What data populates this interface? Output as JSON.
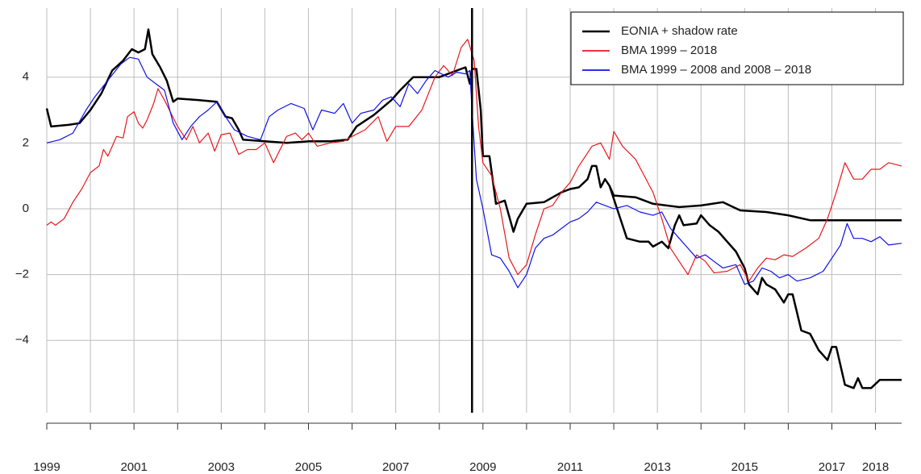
{
  "chart_data": {
    "type": "line",
    "legend": "top-right",
    "grid": true,
    "xlim": [
      1999,
      2018.6
    ],
    "ylim": [
      -6.2,
      6.1
    ],
    "xticks": [
      1999,
      2001,
      2003,
      2005,
      2007,
      2009,
      2011,
      2013,
      2015,
      2017,
      2018
    ],
    "xgrid": [
      1999,
      2000,
      2001,
      2002,
      2003,
      2004,
      2005,
      2006,
      2007,
      2008,
      2009,
      2010,
      2011,
      2012,
      2013,
      2014,
      2015,
      2016,
      2017,
      2018
    ],
    "yticks": [
      {
        "value": -4,
        "label": "−4"
      },
      {
        "value": -2,
        "label": "−2"
      },
      0,
      2,
      4
    ],
    "vline": 2008.75,
    "series": [
      {
        "name": "EONIA + shadow rate",
        "color": "#000000",
        "width": 2.5,
        "x": [
          1999.0,
          1999.1,
          1999.5,
          1999.75,
          2000.0,
          2000.25,
          2000.5,
          2000.75,
          2000.95,
          2001.1,
          2001.25,
          2001.33,
          2001.42,
          2001.6,
          2001.75,
          2001.9,
          2002.0,
          2002.5,
          2002.9,
          2003.1,
          2003.25,
          2003.4,
          2003.5,
          2004.0,
          2004.5,
          2005.0,
          2005.5,
          2005.9,
          2006.1,
          2006.5,
          2006.9,
          2007.1,
          2007.4,
          2007.7,
          2008.0,
          2008.4,
          2008.6,
          2008.7,
          2008.75,
          2008.85,
          2008.95,
          2009.0,
          2009.15,
          2009.3,
          2009.5,
          2009.7,
          2009.8,
          2010.0,
          2010.4,
          2010.8,
          2011.0,
          2011.2,
          2011.4,
          2011.5,
          2011.6,
          2011.7,
          2011.8,
          2011.9,
          2012.0,
          2012.5,
          2012.9,
          2013.5,
          2014.0,
          2014.5,
          2014.9,
          2015.5,
          2016.0,
          2016.5,
          2017.0,
          2017.5,
          2018.0,
          2018.6,
          null,
          2011.9,
          2012.05,
          2012.2,
          2012.3,
          2012.6,
          2012.8,
          2012.9,
          2013.1,
          2013.25,
          2013.4,
          2013.5,
          2013.6,
          2013.9,
          2014.0,
          2014.2,
          2014.4,
          2014.6,
          2014.8,
          2015.0,
          2015.1,
          2015.3,
          2015.4,
          2015.5,
          2015.7,
          2015.9,
          2016.0,
          2016.1,
          2016.3,
          2016.5,
          2016.7,
          2016.9,
          2017.0,
          2017.1,
          2017.3,
          2017.5,
          2017.6,
          2017.7,
          2017.9,
          2018.1,
          2018.6
        ],
        "values": [
          3.05,
          2.5,
          2.55,
          2.6,
          3.0,
          3.5,
          4.2,
          4.5,
          4.85,
          4.75,
          4.85,
          5.45,
          4.7,
          4.3,
          3.9,
          3.25,
          3.35,
          3.3,
          3.25,
          2.8,
          2.75,
          2.4,
          2.1,
          2.05,
          2.0,
          2.05,
          2.05,
          2.1,
          2.5,
          2.85,
          3.3,
          3.6,
          4.0,
          4.0,
          4.0,
          4.2,
          4.3,
          3.8,
          4.25,
          4.25,
          3.0,
          1.6,
          1.6,
          0.15,
          0.25,
          -0.7,
          -0.3,
          0.15,
          0.2,
          0.5,
          0.6,
          0.65,
          0.9,
          1.3,
          1.3,
          0.65,
          0.9,
          0.7,
          0.4,
          0.35,
          0.15,
          0.05,
          0.1,
          0.2,
          -0.05,
          -0.1,
          -0.2,
          -0.35,
          -0.35,
          -0.35,
          -0.35,
          -0.35,
          null,
          0.7,
          0.1,
          -0.5,
          -0.9,
          -1.0,
          -1.0,
          -1.15,
          -1.0,
          -1.2,
          -0.5,
          -0.2,
          -0.5,
          -0.45,
          -0.2,
          -0.5,
          -0.7,
          -1.0,
          -1.3,
          -1.8,
          -2.3,
          -2.6,
          -2.1,
          -2.3,
          -2.45,
          -2.85,
          -2.6,
          -2.6,
          -3.7,
          -3.8,
          -4.3,
          -4.6,
          -4.2,
          -4.2,
          -5.35,
          -5.45,
          -5.15,
          -5.45,
          -5.45,
          -5.2,
          -5.2
        ]
      },
      {
        "name": "BMA 1999 – 2018",
        "color": "#e8181c",
        "width": 1.2,
        "x": [
          1999.0,
          1999.1,
          1999.2,
          1999.4,
          1999.6,
          1999.8,
          2000.0,
          2000.2,
          2000.3,
          2000.4,
          2000.6,
          2000.75,
          2000.85,
          2001.0,
          2001.1,
          2001.2,
          2001.3,
          2001.45,
          2001.55,
          2001.7,
          2001.85,
          2002.0,
          2002.2,
          2002.35,
          2002.5,
          2002.7,
          2002.85,
          2003.0,
          2003.2,
          2003.4,
          2003.6,
          2003.8,
          2004.0,
          2004.2,
          2004.35,
          2004.5,
          2004.7,
          2004.85,
          2005.0,
          2005.2,
          2005.5,
          2005.8,
          2006.0,
          2006.3,
          2006.6,
          2006.8,
          2007.0,
          2007.3,
          2007.6,
          2007.9,
          2008.1,
          2008.3,
          2008.5,
          2008.65,
          2008.8,
          2008.9,
          2009.0,
          2009.2,
          2009.4,
          2009.6,
          2009.8,
          2010.0,
          2010.2,
          2010.4,
          2010.6,
          2010.8,
          2011.0,
          2011.2,
          2011.5,
          2011.7,
          2011.9,
          2012.0,
          2012.2,
          2012.5,
          2012.7,
          2012.9,
          2013.1,
          2013.3,
          2013.5,
          2013.7,
          2013.9,
          2014.1,
          2014.3,
          2014.6,
          2014.9,
          2015.1,
          2015.3,
          2015.5,
          2015.7,
          2015.9,
          2016.1,
          2016.4,
          2016.7,
          2016.9,
          2017.1,
          2017.3,
          2017.5,
          2017.7,
          2017.9,
          2018.1,
          2018.3,
          2018.6
        ],
        "values": [
          -0.5,
          -0.4,
          -0.5,
          -0.3,
          0.2,
          0.6,
          1.1,
          1.3,
          1.8,
          1.6,
          2.2,
          2.15,
          2.8,
          2.95,
          2.6,
          2.45,
          2.7,
          3.2,
          3.65,
          3.3,
          2.9,
          2.5,
          2.1,
          2.5,
          2.0,
          2.3,
          1.75,
          2.25,
          2.3,
          1.65,
          1.8,
          1.8,
          2.0,
          1.4,
          1.8,
          2.2,
          2.3,
          2.1,
          2.3,
          1.9,
          2.0,
          2.05,
          2.2,
          2.4,
          2.8,
          2.05,
          2.5,
          2.5,
          3.0,
          4.0,
          4.35,
          4.05,
          4.9,
          5.15,
          4.5,
          2.5,
          1.4,
          1.0,
          0.0,
          -1.5,
          -2.0,
          -1.7,
          -0.8,
          0.0,
          0.1,
          0.5,
          0.8,
          1.3,
          1.9,
          2.0,
          1.5,
          2.35,
          1.9,
          1.5,
          1.0,
          0.5,
          -0.3,
          -1.2,
          -1.6,
          -2.0,
          -1.4,
          -1.6,
          -1.95,
          -1.9,
          -1.7,
          -2.2,
          -1.8,
          -1.5,
          -1.55,
          -1.4,
          -1.45,
          -1.2,
          -0.9,
          -0.3,
          0.5,
          1.4,
          0.9,
          0.9,
          1.2,
          1.2,
          1.4,
          1.3
        ]
      },
      {
        "name": "BMA 1999 – 2008 and 2008 – 2018",
        "color": "#1010e8",
        "width": 1.2,
        "x": [
          1999.0,
          1999.3,
          1999.6,
          1999.9,
          2000.1,
          2000.4,
          2000.7,
          2000.9,
          2001.1,
          2001.3,
          2001.5,
          2001.7,
          2001.9,
          2002.1,
          2002.3,
          2002.5,
          2002.7,
          2002.9,
          2003.1,
          2003.3,
          2003.6,
          2003.9,
          2004.1,
          2004.3,
          2004.6,
          2004.9,
          2005.1,
          2005.3,
          2005.6,
          2005.8,
          2006.0,
          2006.2,
          2006.5,
          2006.7,
          2006.9,
          2007.1,
          2007.3,
          2007.5,
          2007.7,
          2007.9,
          2008.2,
          2008.4,
          2008.6,
          2008.7,
          2008.75,
          2008.85,
          2009.0,
          2009.2,
          2009.4,
          2009.6,
          2009.8,
          2010.0,
          2010.2,
          2010.4,
          2010.6,
          2010.8,
          2011.0,
          2011.2,
          2011.4,
          2011.6,
          2011.8,
          2012.0,
          2012.3,
          2012.6,
          2012.9,
          2013.1,
          2013.3,
          2013.5,
          2013.7,
          2013.9,
          2014.1,
          2014.3,
          2014.5,
          2014.8,
          2015.0,
          2015.2,
          2015.4,
          2015.6,
          2015.8,
          2016.0,
          2016.2,
          2016.5,
          2016.8,
          2017.0,
          2017.2,
          2017.35,
          2017.5,
          2017.7,
          2017.9,
          2018.1,
          2018.3,
          2018.6
        ],
        "values": [
          2.0,
          2.1,
          2.3,
          3.0,
          3.4,
          3.9,
          4.4,
          4.6,
          4.55,
          4.0,
          3.8,
          3.6,
          2.6,
          2.1,
          2.5,
          2.8,
          3.0,
          3.25,
          2.8,
          2.4,
          2.2,
          2.1,
          2.8,
          3.0,
          3.2,
          3.05,
          2.4,
          3.0,
          2.9,
          3.2,
          2.6,
          2.9,
          3.0,
          3.3,
          3.4,
          3.1,
          3.8,
          3.5,
          3.9,
          4.2,
          4.0,
          4.15,
          4.1,
          4.2,
          3.0,
          0.9,
          0.0,
          -1.4,
          -1.5,
          -1.9,
          -2.4,
          -2.0,
          -1.2,
          -0.9,
          -0.8,
          -0.6,
          -0.4,
          -0.3,
          -0.1,
          0.2,
          0.1,
          0.0,
          0.1,
          -0.1,
          -0.2,
          -0.1,
          -0.6,
          -0.9,
          -1.2,
          -1.5,
          -1.4,
          -1.6,
          -1.8,
          -1.7,
          -2.3,
          -2.2,
          -1.8,
          -1.9,
          -2.1,
          -2.0,
          -2.2,
          -2.1,
          -1.9,
          -1.5,
          -1.1,
          -0.45,
          -0.9,
          -0.9,
          -1.0,
          -0.85,
          -1.1,
          -1.05
        ]
      }
    ]
  }
}
